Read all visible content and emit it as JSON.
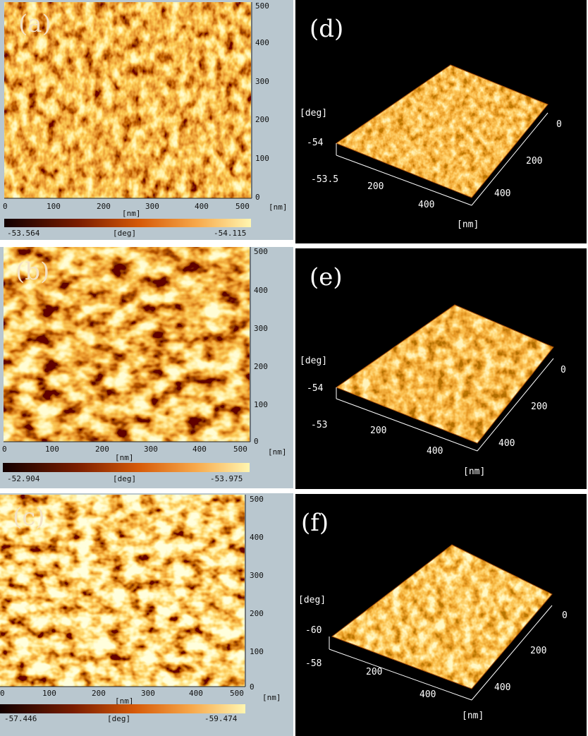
{
  "panels_2d": [
    {
      "label": "(a)",
      "x_ticks": [
        "0",
        "100",
        "200",
        "300",
        "400",
        "500"
      ],
      "y_ticks": [
        "0",
        "100",
        "200",
        "300",
        "400",
        "500"
      ],
      "x_unit": "[nm]",
      "y_unit": "[nm]",
      "scale_min": "-53.564",
      "scale_mid": "[deg]",
      "scale_max": "-54.115",
      "texture": "fine"
    },
    {
      "label": "(b)",
      "x_ticks": [
        "0",
        "100",
        "200",
        "300",
        "400",
        "500"
      ],
      "y_ticks": [
        "0",
        "100",
        "200",
        "300",
        "400",
        "500"
      ],
      "x_unit": "[nm]",
      "y_unit": "[nm]",
      "scale_min": "-52.904",
      "scale_mid": "[deg]",
      "scale_max": "-53.975",
      "texture": "coarse"
    },
    {
      "label": "(c)",
      "x_ticks": [
        "0",
        "100",
        "200",
        "300",
        "400",
        "500"
      ],
      "y_ticks": [
        "0",
        "100",
        "200",
        "300",
        "400",
        "500"
      ],
      "x_unit": "[nm]",
      "y_unit": "[nm]",
      "scale_min": "-57.446",
      "scale_mid": "[deg]",
      "scale_max": "-59.474",
      "texture": "coarse-bright"
    }
  ],
  "panels_3d": [
    {
      "label": "(d)",
      "z_unit": "[deg]",
      "z_top": "-54",
      "z_bottom": "-53.5",
      "left_ticks": [
        "200",
        "400"
      ],
      "right_ticks": [
        "0",
        "200",
        "400"
      ],
      "xy_unit": "[nm]"
    },
    {
      "label": "(e)",
      "z_unit": "[deg]",
      "z_top": "-54",
      "z_bottom": "-53",
      "left_ticks": [
        "200",
        "400"
      ],
      "right_ticks": [
        "0",
        "200",
        "400"
      ],
      "xy_unit": "[nm]"
    },
    {
      "label": "(f)",
      "z_unit": "[deg]",
      "z_top": "-60",
      "z_bottom": "-58",
      "left_ticks": [
        "200",
        "400"
      ],
      "right_ticks": [
        "0",
        "200",
        "400"
      ],
      "xy_unit": "[nm]"
    }
  ],
  "colors": {
    "colormap_dark": "#1a0000",
    "colormap_mid": "#d2570a",
    "colormap_bright": "#fff2a0",
    "panel_bg": "#b9c7cf",
    "plot3d_bg": "#000000"
  }
}
